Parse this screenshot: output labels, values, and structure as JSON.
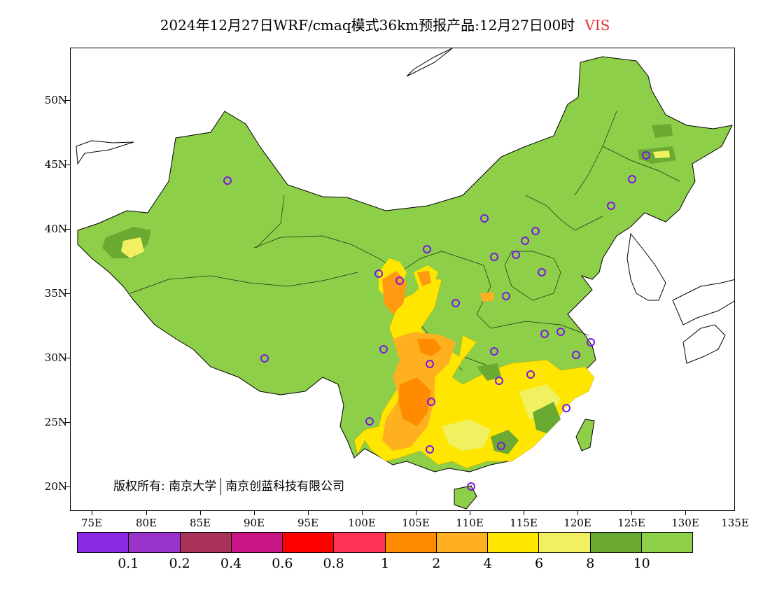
{
  "title": {
    "main": "2024年12月27日WRF/cmaq模式36km预报产品:12月27日00时",
    "variable": "VIS"
  },
  "axes": {
    "lat_labels": [
      "50N",
      "45N",
      "40N",
      "35N",
      "30N",
      "25N",
      "20N"
    ],
    "lon_labels": [
      "75E",
      "80E",
      "85E",
      "90E",
      "95E",
      "100E",
      "105E",
      "110E",
      "115E",
      "120E",
      "125E",
      "130E",
      "135E"
    ]
  },
  "legend": {
    "colors": [
      "#8a2be2",
      "#9933cc",
      "#a8325a",
      "#c71585",
      "#ff0000",
      "#ff3355",
      "#ff8c00",
      "#ffb020",
      "#ffe600",
      "#f0f060",
      "#6aaa32",
      "#8ecf4a"
    ],
    "labels": [
      "0.1",
      "0.2",
      "0.4",
      "0.6",
      "0.8",
      "1",
      "2",
      "4",
      "6",
      "8",
      "10"
    ]
  },
  "copyright": {
    "prefix": "版权所有: 南京大学",
    "company": "南京创蓝科技有限公司"
  },
  "map": {
    "land_color": "#8ecf4a",
    "stations": 30
  }
}
